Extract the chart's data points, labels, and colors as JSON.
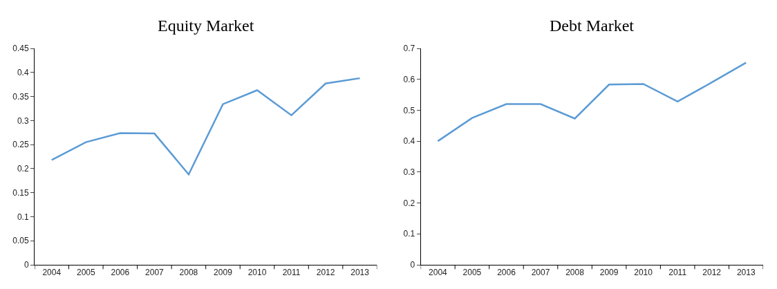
{
  "chart_data": [
    {
      "type": "line",
      "title": "Equity Market",
      "categories": [
        "2004",
        "2005",
        "2006",
        "2007",
        "2008",
        "2009",
        "2010",
        "2011",
        "2012",
        "2013"
      ],
      "series": [
        {
          "color": "#5b9bd5",
          "values": [
            0.218,
            0.255,
            0.274,
            0.273,
            0.188,
            0.334,
            0.363,
            0.311,
            0.377,
            0.388
          ]
        }
      ],
      "ylim": [
        0,
        0.45
      ],
      "yticks": [
        0,
        0.05,
        0.1,
        0.15,
        0.2,
        0.25,
        0.3,
        0.35,
        0.4,
        0.45
      ],
      "grid": false,
      "marker": "none",
      "line_style": "solid"
    },
    {
      "type": "line",
      "title": "Debt Market",
      "categories": [
        "2004",
        "2005",
        "2006",
        "2007",
        "2008",
        "2009",
        "2010",
        "2011",
        "2012",
        "2013"
      ],
      "series": [
        {
          "color": "#5b9bd5",
          "values": [
            0.4,
            0.475,
            0.52,
            0.52,
            0.473,
            0.583,
            0.585,
            0.528,
            0.59,
            0.654
          ]
        }
      ],
      "ylim": [
        0,
        0.7
      ],
      "yticks": [
        0,
        0.1,
        0.2,
        0.3,
        0.4,
        0.5,
        0.6,
        0.7
      ],
      "grid": false,
      "marker": "none",
      "line_style": "solid"
    }
  ]
}
